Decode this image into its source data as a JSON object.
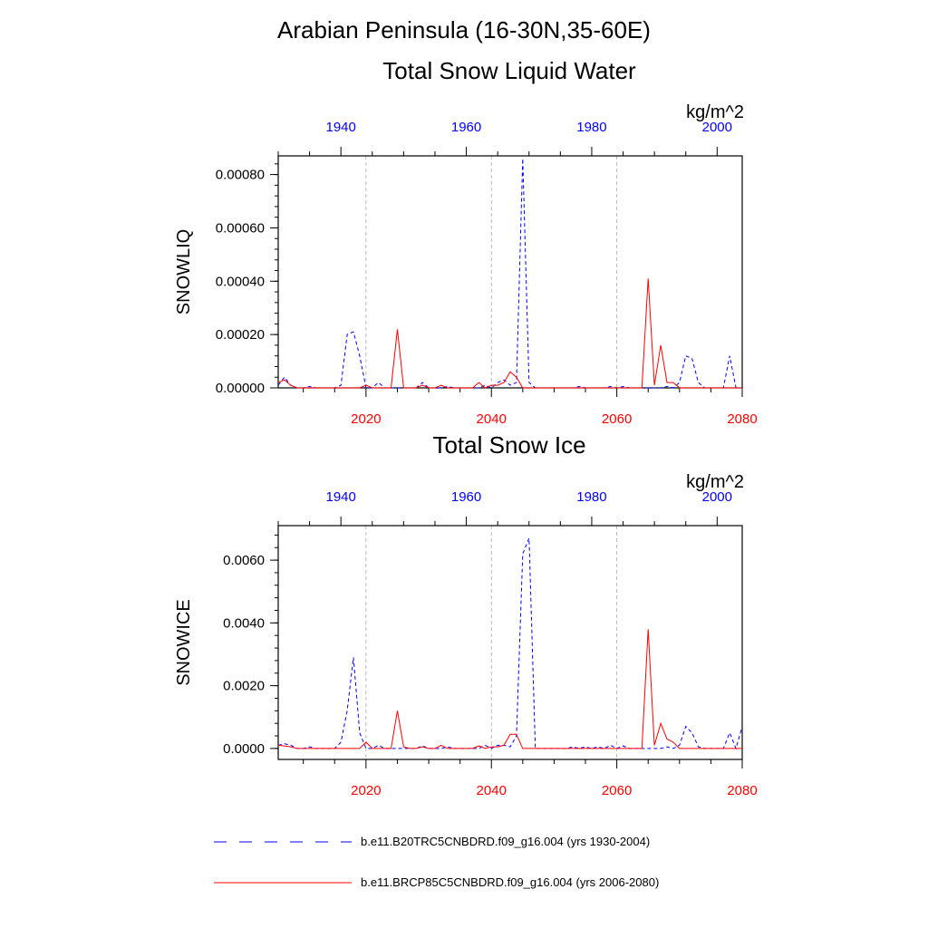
{
  "figure": {
    "title_line1": "Arabian Peninsula (16-30N,35-60E)",
    "colors": {
      "historical": "#0000ff",
      "future": "#ff0000",
      "grid": "#aaaaaa",
      "frame": "#000000"
    }
  },
  "legend": {
    "items": [
      {
        "label": "b.e11.B20TRC5CNBDRD.f09_g16.004 (yrs 1930-2004)",
        "color": "#0000ff",
        "dash": "dashed"
      },
      {
        "label": "b.e11.BRCP85C5CNBDRD.f09_g16.004 (yrs 2006-2080)",
        "color": "#ff0000",
        "dash": "solid"
      }
    ]
  },
  "chart_data": [
    {
      "type": "line",
      "title": "Total Snow Liquid Water",
      "ylabel": "SNOWLIQ",
      "units": "kg/m^2",
      "ylim": [
        0,
        0.00087
      ],
      "yticks": [
        "0.00000",
        "0.00020",
        "0.00040",
        "0.00060",
        "0.00080"
      ],
      "ytick_values": [
        0,
        0.0002,
        0.0004,
        0.0006,
        0.0008
      ],
      "bottom_axis": {
        "range": [
          2006,
          2080
        ],
        "ticks": [
          "2020",
          "2040",
          "2060",
          "2080"
        ],
        "tick_values": [
          2020,
          2040,
          2060,
          2080
        ]
      },
      "top_axis": {
        "range": [
          1930,
          2004
        ],
        "ticks": [
          "1940",
          "1960",
          "1980",
          "2000"
        ],
        "tick_values": [
          1940,
          1960,
          1980,
          2000
        ]
      },
      "grid": "vertical dashed at 2020, 2040, 2060",
      "series": [
        {
          "name": "b.e11.B20TRC5CNBDRD.f09_g16.004 (yrs 1930-2004)",
          "axis": "top",
          "color": "#0000ff",
          "dash": "dashed",
          "x": [
            1930,
            1931,
            1932,
            1933,
            1934,
            1935,
            1936,
            1937,
            1938,
            1939,
            1940,
            1941,
            1942,
            1943,
            1944,
            1945,
            1946,
            1947,
            1948,
            1949,
            1950,
            1951,
            1952,
            1953,
            1954,
            1955,
            1956,
            1957,
            1958,
            1959,
            1960,
            1961,
            1962,
            1963,
            1964,
            1965,
            1966,
            1967,
            1968,
            1969,
            1970,
            1971,
            1972,
            1973,
            1974,
            1975,
            1976,
            1977,
            1978,
            1979,
            1980,
            1981,
            1982,
            1983,
            1984,
            1985,
            1986,
            1987,
            1988,
            1989,
            1990,
            1991,
            1992,
            1993,
            1994,
            1995,
            1996,
            1997,
            1998,
            1999,
            2000,
            2001,
            2002,
            2003,
            2004
          ],
          "values": [
            1e-05,
            4e-05,
            1e-05,
            0,
            0,
            5e-06,
            0,
            0,
            0,
            0,
            1e-05,
            0.0002,
            0.00021,
            0.00012,
            0,
            0,
            2e-05,
            0,
            0,
            0,
            0,
            0,
            0,
            2e-05,
            0,
            0,
            0,
            5e-06,
            0,
            0,
            0,
            0,
            0,
            1e-05,
            0,
            2e-05,
            3e-05,
            1e-05,
            2e-05,
            0.00086,
            2e-05,
            0,
            0,
            0,
            0,
            0,
            0,
            0,
            5e-06,
            0,
            0,
            0,
            0,
            5e-06,
            0,
            5e-06,
            0,
            0,
            0,
            0,
            0,
            0,
            5e-06,
            0,
            2e-05,
            0.00012,
            0.00011,
            2e-05,
            0,
            0,
            0,
            0,
            0.00012,
            0,
            0
          ]
        },
        {
          "name": "b.e11.BRCP85C5CNBDRD.f09_g16.004 (yrs 2006-2080)",
          "axis": "bottom",
          "color": "#ff0000",
          "dash": "solid",
          "x": [
            2006,
            2007,
            2008,
            2009,
            2010,
            2011,
            2012,
            2013,
            2014,
            2015,
            2016,
            2017,
            2018,
            2019,
            2020,
            2021,
            2022,
            2023,
            2024,
            2025,
            2026,
            2027,
            2028,
            2029,
            2030,
            2031,
            2032,
            2033,
            2034,
            2035,
            2036,
            2037,
            2038,
            2039,
            2040,
            2041,
            2042,
            2043,
            2044,
            2045,
            2046,
            2047,
            2048,
            2049,
            2050,
            2051,
            2052,
            2053,
            2054,
            2055,
            2056,
            2057,
            2058,
            2059,
            2060,
            2061,
            2062,
            2063,
            2064,
            2065,
            2066,
            2067,
            2068,
            2069,
            2070,
            2071,
            2072,
            2073,
            2074,
            2075,
            2076,
            2077,
            2078,
            2079,
            2080
          ],
          "values": [
            2e-05,
            3e-05,
            1e-05,
            0,
            0,
            0,
            0,
            0,
            0,
            0,
            0,
            0,
            0,
            0,
            1e-05,
            0,
            0,
            0,
            0,
            0.00022,
            0,
            0,
            0,
            1e-05,
            0,
            0,
            1e-05,
            0,
            0,
            0,
            0,
            0,
            2e-05,
            0,
            1e-05,
            1e-05,
            2e-05,
            6e-05,
            4e-05,
            0,
            0,
            0,
            0,
            0,
            0,
            0,
            0,
            0,
            0,
            0,
            0,
            0,
            0,
            0,
            0,
            0,
            0,
            0,
            0,
            0.00041,
            1e-05,
            0.00016,
            2e-05,
            2e-05,
            0,
            0,
            0,
            0,
            0,
            0,
            0,
            0,
            0,
            0,
            0
          ]
        }
      ]
    },
    {
      "type": "line",
      "title": "Total Snow Ice",
      "ylabel": "SNOWICE",
      "units": "kg/m^2",
      "ylim": [
        -0.00035,
        0.0071
      ],
      "yticks": [
        "0.0000",
        "0.0020",
        "0.0040",
        "0.0060"
      ],
      "ytick_values": [
        0,
        0.002,
        0.004,
        0.006
      ],
      "bottom_axis": {
        "range": [
          2006,
          2080
        ],
        "ticks": [
          "2020",
          "2040",
          "2060",
          "2080"
        ],
        "tick_values": [
          2020,
          2040,
          2060,
          2080
        ]
      },
      "top_axis": {
        "range": [
          1930,
          2004
        ],
        "ticks": [
          "1940",
          "1960",
          "1980",
          "2000"
        ],
        "tick_values": [
          1940,
          1960,
          1980,
          2000
        ]
      },
      "grid": "vertical dashed at 2020, 2040, 2060",
      "series": [
        {
          "name": "b.e11.B20TRC5CNBDRD.f09_g16.004 (yrs 1930-2004)",
          "axis": "top",
          "color": "#0000ff",
          "dash": "dashed",
          "x": [
            1930,
            1931,
            1932,
            1933,
            1934,
            1935,
            1936,
            1937,
            1938,
            1939,
            1940,
            1941,
            1942,
            1943,
            1944,
            1945,
            1946,
            1947,
            1948,
            1949,
            1950,
            1951,
            1952,
            1953,
            1954,
            1955,
            1956,
            1957,
            1958,
            1959,
            1960,
            1961,
            1962,
            1963,
            1964,
            1965,
            1966,
            1967,
            1968,
            1969,
            1970,
            1971,
            1972,
            1973,
            1974,
            1975,
            1976,
            1977,
            1978,
            1979,
            1980,
            1981,
            1982,
            1983,
            1984,
            1985,
            1986,
            1987,
            1988,
            1989,
            1990,
            1991,
            1992,
            1993,
            1994,
            1995,
            1996,
            1997,
            1998,
            1999,
            2000,
            2001,
            2002,
            2003,
            2004
          ],
          "values": [
            0.0001,
            0.00015,
            0.0001,
            0,
            0,
            5e-05,
            0,
            0,
            0,
            0,
            0.0002,
            0.0012,
            0.0029,
            0.0005,
            0,
            0,
            0.0001,
            0,
            0,
            0,
            0,
            0,
            0,
            8e-05,
            0,
            0,
            0,
            5e-05,
            0,
            0,
            0,
            0,
            0,
            0.0001,
            0,
            0.0001,
            0.0001,
            5e-05,
            0.0004,
            0.0062,
            0.0067,
            0,
            0,
            0,
            0,
            0,
            0,
            5e-05,
            0,
            5e-05,
            0,
            5e-05,
            0,
            0.0001,
            0,
            8e-05,
            0,
            0,
            0,
            0,
            0,
            0,
            5e-05,
            0,
            0.0001,
            0.0007,
            0.0005,
            5e-05,
            0,
            0,
            0,
            0,
            0.0005,
            0,
            0.0007
          ]
        },
        {
          "name": "b.e11.BRCP85C5CNBDRD.f09_g16.004 (yrs 2006-2080)",
          "axis": "bottom",
          "color": "#ff0000",
          "dash": "solid",
          "x": [
            2006,
            2007,
            2008,
            2009,
            2010,
            2011,
            2012,
            2013,
            2014,
            2015,
            2016,
            2017,
            2018,
            2019,
            2020,
            2021,
            2022,
            2023,
            2024,
            2025,
            2026,
            2027,
            2028,
            2029,
            2030,
            2031,
            2032,
            2033,
            2034,
            2035,
            2036,
            2037,
            2038,
            2039,
            2040,
            2041,
            2042,
            2043,
            2044,
            2045,
            2046,
            2047,
            2048,
            2049,
            2050,
            2051,
            2052,
            2053,
            2054,
            2055,
            2056,
            2057,
            2058,
            2059,
            2060,
            2061,
            2062,
            2063,
            2064,
            2065,
            2066,
            2067,
            2068,
            2069,
            2070,
            2071,
            2072,
            2073,
            2074,
            2075,
            2076,
            2077,
            2078,
            2079,
            2080
          ],
          "values": [
            0.0001,
            8e-05,
            5e-05,
            0,
            0,
            0,
            0,
            0,
            0,
            0,
            0,
            0,
            0,
            0,
            0.0002,
            0,
            0,
            0,
            0,
            0.0012,
            5e-05,
            0,
            0,
            5e-05,
            0,
            0,
            0.0001,
            0,
            0,
            0,
            0,
            0,
            8e-05,
            0,
            5e-05,
            5e-05,
            0.0001,
            0.00045,
            0.00045,
            0,
            0,
            0,
            0,
            0,
            0,
            0,
            0,
            0,
            0,
            0,
            0,
            0,
            0,
            0,
            0,
            0,
            0,
            0,
            0,
            0.0038,
            0.0001,
            0.0008,
            0.0003,
            0.0002,
            0,
            0,
            0,
            0,
            0,
            0,
            0,
            0,
            0,
            0,
            0
          ]
        }
      ]
    }
  ]
}
